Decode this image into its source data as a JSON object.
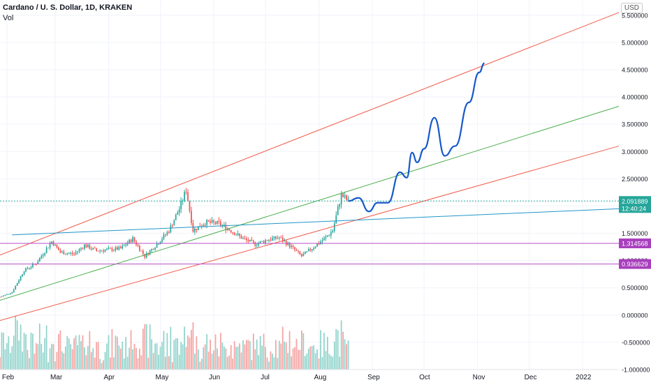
{
  "header": {
    "symbol_title": "Cardano / U. S. Dollar, 1D, KRAKEN",
    "sub_label": "Vol",
    "currency": "USD"
  },
  "colors": {
    "up": "#26a69a",
    "down": "#ef5350",
    "vol_up": "#8fd3cb",
    "vol_down": "#f4a3a1",
    "channel": "#f05a4a",
    "mid_line": "#4caf50",
    "trend_blue": "#2196c8",
    "level_line": "#b74fc5",
    "projection": "#1558c9",
    "price_tag": "#26a69a",
    "level_tag": "#a83fbd"
  },
  "chart_data": {
    "type": "candlestick",
    "title": "Cardano / U. S. Dollar, 1D, KRAKEN",
    "y_axis_labels": [
      "5.500000",
      "5.000000",
      "4.500000",
      "4.000000",
      "3.500000",
      "3.000000",
      "2.500000",
      "2.000000",
      "1.500000",
      "1.000000",
      "0.500000",
      "0.000000",
      "-0.500000",
      "-1.000000"
    ],
    "ylim": [
      -1.0,
      5.6
    ],
    "x_axis_labels": [
      "Feb",
      "Mar",
      "Apr",
      "May",
      "Jun",
      "Jul",
      "Aug",
      "Sep",
      "Oct",
      "Nov",
      "Dec",
      "2022"
    ],
    "current_price": "2.091889",
    "countdown": "12:40:24",
    "levels": [
      {
        "value": 1.314568,
        "label": "1.314568"
      },
      {
        "value": 0.936629,
        "label": "0.936629"
      }
    ],
    "price_anchors": [
      {
        "date": "2021-01-28",
        "price": 0.33
      },
      {
        "date": "2021-02-04",
        "price": 0.42
      },
      {
        "date": "2021-02-11",
        "price": 0.82
      },
      {
        "date": "2021-02-18",
        "price": 0.95
      },
      {
        "date": "2021-02-27",
        "price": 1.35
      },
      {
        "date": "2021-03-04",
        "price": 1.15
      },
      {
        "date": "2021-03-12",
        "price": 1.12
      },
      {
        "date": "2021-03-18",
        "price": 1.28
      },
      {
        "date": "2021-03-25",
        "price": 1.18
      },
      {
        "date": "2021-04-01",
        "price": 1.2
      },
      {
        "date": "2021-04-08",
        "price": 1.22
      },
      {
        "date": "2021-04-15",
        "price": 1.4
      },
      {
        "date": "2021-04-22",
        "price": 1.08
      },
      {
        "date": "2021-04-29",
        "price": 1.3
      },
      {
        "date": "2021-05-06",
        "price": 1.55
      },
      {
        "date": "2021-05-12",
        "price": 1.95
      },
      {
        "date": "2021-05-16",
        "price": 2.3
      },
      {
        "date": "2021-05-20",
        "price": 1.55
      },
      {
        "date": "2021-05-27",
        "price": 1.7
      },
      {
        "date": "2021-06-04",
        "price": 1.68
      },
      {
        "date": "2021-06-11",
        "price": 1.55
      },
      {
        "date": "2021-06-18",
        "price": 1.4
      },
      {
        "date": "2021-06-25",
        "price": 1.3
      },
      {
        "date": "2021-07-02",
        "price": 1.38
      },
      {
        "date": "2021-07-09",
        "price": 1.42
      },
      {
        "date": "2021-07-16",
        "price": 1.25
      },
      {
        "date": "2021-07-22",
        "price": 1.08
      },
      {
        "date": "2021-07-29",
        "price": 1.25
      },
      {
        "date": "2021-08-05",
        "price": 1.42
      },
      {
        "date": "2021-08-09",
        "price": 1.55
      },
      {
        "date": "2021-08-12",
        "price": 1.95
      },
      {
        "date": "2021-08-14",
        "price": 2.2
      },
      {
        "date": "2021-08-18",
        "price": 2.09
      }
    ],
    "projection_path": [
      {
        "date": "2021-08-18",
        "price": 2.09
      },
      {
        "date": "2021-08-24",
        "price": 2.15
      },
      {
        "date": "2021-08-30",
        "price": 1.9
      },
      {
        "date": "2021-09-04",
        "price": 2.06
      },
      {
        "date": "2021-09-10",
        "price": 2.06
      },
      {
        "date": "2021-09-17",
        "price": 2.62
      },
      {
        "date": "2021-09-21",
        "price": 2.52
      },
      {
        "date": "2021-09-24",
        "price": 2.98
      },
      {
        "date": "2021-09-27",
        "price": 2.8
      },
      {
        "date": "2021-10-01",
        "price": 3.05
      },
      {
        "date": "2021-10-07",
        "price": 3.62
      },
      {
        "date": "2021-10-13",
        "price": 2.92
      },
      {
        "date": "2021-10-19",
        "price": 3.1
      },
      {
        "date": "2021-10-27",
        "price": 3.9
      },
      {
        "date": "2021-11-02",
        "price": 4.45
      },
      {
        "date": "2021-11-05",
        "price": 4.62
      }
    ],
    "trend_lines": [
      {
        "name": "channel-upper",
        "color_key": "channel",
        "start": {
          "date": "2021-01-28",
          "price": 1.1
        },
        "end": {
          "date": "2022-01-22",
          "price": 5.55
        }
      },
      {
        "name": "channel-lower",
        "color_key": "channel",
        "start": {
          "date": "2021-01-28",
          "price": -0.1
        },
        "end": {
          "date": "2022-01-22",
          "price": 3.1
        }
      },
      {
        "name": "mid-line",
        "color_key": "mid_line",
        "start": {
          "date": "2021-01-28",
          "price": 0.27
        },
        "end": {
          "date": "2022-01-22",
          "price": 3.83
        }
      },
      {
        "name": "horizontal-trend",
        "color_key": "trend_blue",
        "start": {
          "date": "2021-02-04",
          "price": 1.47
        },
        "end": {
          "date": "2022-01-22",
          "price": 1.95
        }
      }
    ]
  }
}
